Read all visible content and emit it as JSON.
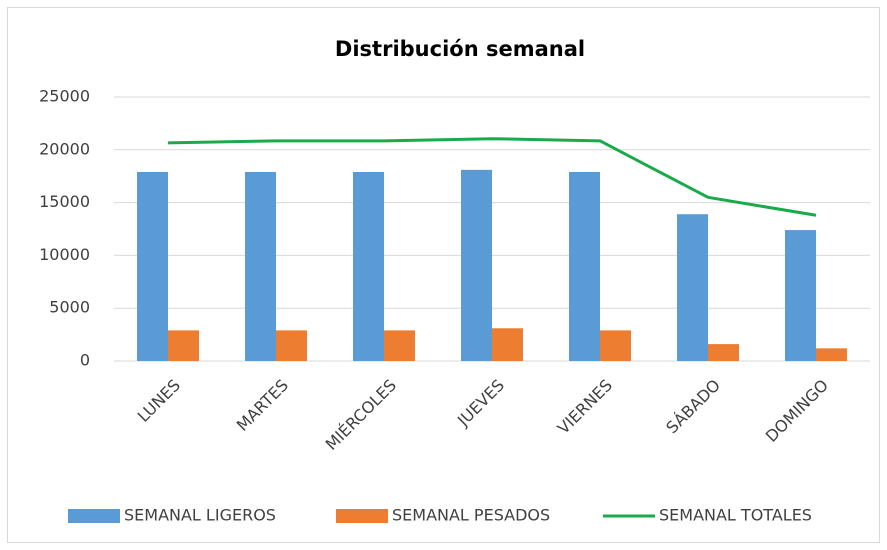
{
  "chart_data": {
    "type": "bar_line",
    "title": "Distribución semanal",
    "categories": [
      "LUNES",
      "MARTES",
      "MIÉRCOLES",
      "JUEVES",
      "VIERNES",
      "SÁBADO",
      "DOMINGO"
    ],
    "series": [
      {
        "name": "SEMANAL LIGEROS",
        "color": "#5b9bd5",
        "kind": "bar",
        "values": [
          17900,
          17900,
          17900,
          18100,
          17900,
          13900,
          12400
        ]
      },
      {
        "name": "SEMANAL PESADOS",
        "color": "#ed7d31",
        "kind": "bar",
        "values": [
          2900,
          2900,
          2900,
          3100,
          2900,
          1600,
          1200
        ]
      },
      {
        "name": "SEMANAL TOTALES",
        "color": "#1aaa4a",
        "kind": "line",
        "values": [
          20650,
          20850,
          20850,
          21050,
          20850,
          15500,
          13800
        ]
      }
    ],
    "ylim": [
      0,
      25000
    ],
    "yticks": [
      0,
      5000,
      10000,
      15000,
      20000,
      25000
    ],
    "grid": true,
    "legend": "bottom"
  }
}
